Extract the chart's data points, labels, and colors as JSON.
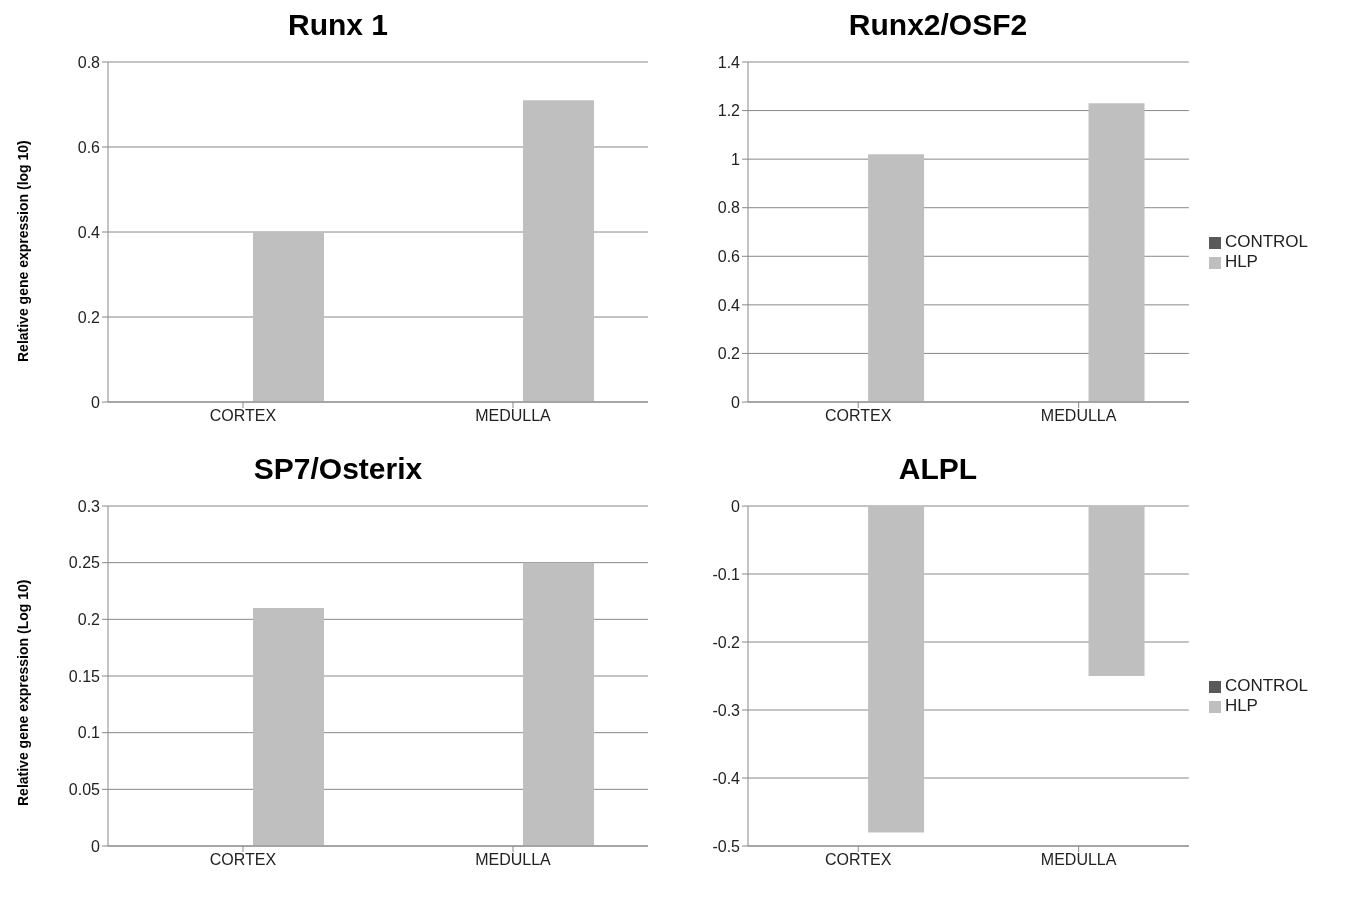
{
  "chart_data": [
    {
      "type": "bar",
      "title": "Runx 1",
      "ylabel": "Relative gene expression (log 10)",
      "categories": [
        "CORTEX",
        "MEDULLA"
      ],
      "series": [
        {
          "color": "#595959",
          "values": [
            0,
            0
          ]
        },
        {
          "color": "#bfbfbf",
          "values": [
            0.4,
            0.71
          ]
        }
      ],
      "ylim": [
        0,
        0.8
      ],
      "yticks": [
        0,
        0.2,
        0.4,
        0.6,
        0.8
      ],
      "grid": "y",
      "legend": false
    },
    {
      "type": "bar",
      "title": "Runx2/OSF2",
      "categories": [
        "CORTEX",
        "MEDULLA"
      ],
      "series": [
        {
          "name": "CONTROL",
          "color": "#595959",
          "values": [
            0,
            0
          ]
        },
        {
          "name": "HLP",
          "color": "#bfbfbf",
          "values": [
            1.02,
            1.23
          ]
        }
      ],
      "ylim": [
        0,
        1.4
      ],
      "yticks": [
        0,
        0.2,
        0.4,
        0.6,
        0.8,
        1,
        1.2,
        1.4
      ],
      "grid": "y",
      "legend": "right"
    },
    {
      "type": "bar",
      "title": "SP7/Osterix",
      "ylabel": "Relative gene expression (Log 10)",
      "categories": [
        "CORTEX",
        "MEDULLA"
      ],
      "series": [
        {
          "color": "#595959",
          "values": [
            0,
            0
          ]
        },
        {
          "color": "#bfbfbf",
          "values": [
            0.21,
            0.25
          ]
        }
      ],
      "ylim": [
        0,
        0.3
      ],
      "yticks": [
        0,
        0.05,
        0.1,
        0.15,
        0.2,
        0.25,
        0.3
      ],
      "grid": "y",
      "legend": false
    },
    {
      "type": "bar",
      "title": "ALPL",
      "categories": [
        "CORTEX",
        "MEDULLA"
      ],
      "series": [
        {
          "name": "CONTROL",
          "color": "#595959",
          "values": [
            0,
            0
          ]
        },
        {
          "name": "HLP",
          "color": "#bfbfbf",
          "values": [
            -0.48,
            -0.25
          ]
        }
      ],
      "ylim": [
        -0.5,
        0
      ],
      "yticks": [
        -0.5,
        -0.4,
        -0.3,
        -0.2,
        -0.1,
        0
      ],
      "grid": "y",
      "legend": "right"
    }
  ]
}
